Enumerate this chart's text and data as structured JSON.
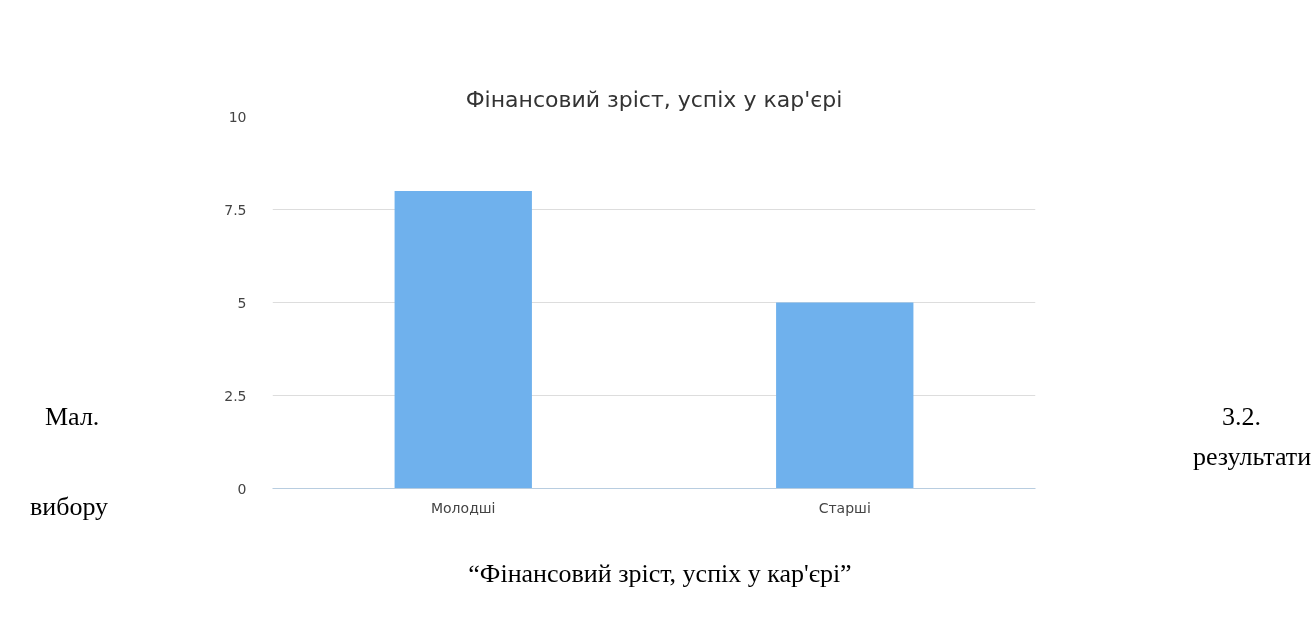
{
  "chart_data": {
    "type": "bar",
    "title": "Фінансовий зріст, успіх у кар'єрі",
    "categories": [
      "Молодші",
      "Старші"
    ],
    "values": [
      8,
      5
    ],
    "color": "#6fb1ed",
    "ylim": [
      0,
      10
    ],
    "yticks": [
      0,
      2.5,
      5,
      7.5,
      10
    ],
    "grid": "y",
    "annotations": [
      "Мал.",
      "3.2.",
      "результати",
      "вибору",
      "“Фінансовий зріст, успіх у кар'єрі”"
    ]
  }
}
